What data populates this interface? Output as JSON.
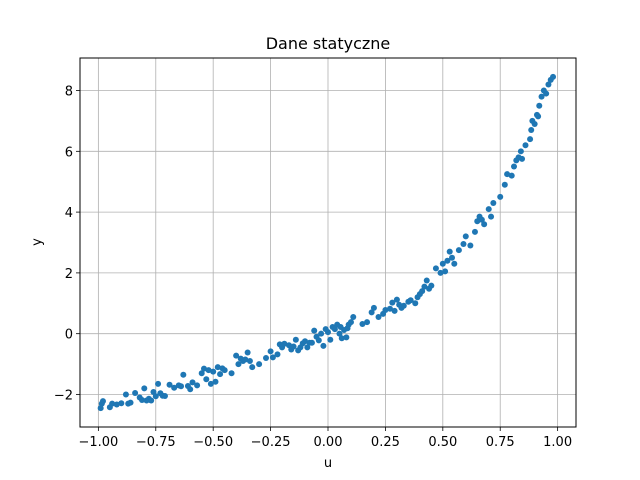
{
  "chart_data": {
    "type": "scatter",
    "title": "Dane statyczne",
    "xlabel": "u",
    "ylabel": "y",
    "xlim": [
      -1.08,
      1.08
    ],
    "ylim": [
      -3.07,
      9.07
    ],
    "xticks": [
      -1.0,
      -0.75,
      -0.5,
      -0.25,
      0.0,
      0.25,
      0.5,
      0.75,
      1.0
    ],
    "xtick_labels": [
      "−1.00",
      "−0.75",
      "−0.50",
      "−0.25",
      "0.00",
      "0.25",
      "0.50",
      "0.75",
      "1.00"
    ],
    "yticks": [
      -2,
      0,
      2,
      4,
      6,
      8
    ],
    "ytick_labels": [
      "−2",
      "0",
      "2",
      "4",
      "6",
      "8"
    ],
    "grid": true,
    "marker_color": "#1f77b4",
    "points": [
      [
        -0.99,
        -2.45
      ],
      [
        -0.985,
        -2.3
      ],
      [
        -0.98,
        -2.22
      ],
      [
        -0.95,
        -2.42
      ],
      [
        -0.94,
        -2.3
      ],
      [
        -0.92,
        -2.33
      ],
      [
        -0.9,
        -2.29
      ],
      [
        -0.88,
        -2.0
      ],
      [
        -0.87,
        -2.3
      ],
      [
        -0.86,
        -2.27
      ],
      [
        -0.84,
        -1.95
      ],
      [
        -0.82,
        -2.1
      ],
      [
        -0.81,
        -2.18
      ],
      [
        -0.8,
        -1.8
      ],
      [
        -0.79,
        -2.2
      ],
      [
        -0.78,
        -2.14
      ],
      [
        -0.77,
        -2.2
      ],
      [
        -0.76,
        -1.92
      ],
      [
        -0.75,
        -2.06
      ],
      [
        -0.74,
        -1.65
      ],
      [
        -0.73,
        -1.96
      ],
      [
        -0.72,
        -2.04
      ],
      [
        -0.71,
        -2.05
      ],
      [
        -0.69,
        -1.68
      ],
      [
        -0.67,
        -1.78
      ],
      [
        -0.65,
        -1.7
      ],
      [
        -0.64,
        -1.73
      ],
      [
        -0.63,
        -1.35
      ],
      [
        -0.61,
        -1.72
      ],
      [
        -0.6,
        -1.83
      ],
      [
        -0.59,
        -1.6
      ],
      [
        -0.57,
        -1.7
      ],
      [
        -0.55,
        -1.3
      ],
      [
        -0.54,
        -1.15
      ],
      [
        -0.53,
        -1.5
      ],
      [
        -0.52,
        -1.2
      ],
      [
        -0.51,
        -1.65
      ],
      [
        -0.5,
        -1.25
      ],
      [
        -0.49,
        -1.58
      ],
      [
        -0.48,
        -1.1
      ],
      [
        -0.47,
        -1.33
      ],
      [
        -0.46,
        -1.14
      ],
      [
        -0.45,
        -1.2
      ],
      [
        -0.42,
        -1.3
      ],
      [
        -0.4,
        -0.72
      ],
      [
        -0.39,
        -1.0
      ],
      [
        -0.38,
        -0.82
      ],
      [
        -0.37,
        -0.9
      ],
      [
        -0.36,
        -0.85
      ],
      [
        -0.35,
        -0.62
      ],
      [
        -0.34,
        -0.9
      ],
      [
        -0.33,
        -1.1
      ],
      [
        -0.3,
        -1.0
      ],
      [
        -0.27,
        -0.8
      ],
      [
        -0.25,
        -0.58
      ],
      [
        -0.24,
        -0.78
      ],
      [
        -0.22,
        -0.68
      ],
      [
        -0.21,
        -0.35
      ],
      [
        -0.2,
        -0.45
      ],
      [
        -0.19,
        -0.33
      ],
      [
        -0.17,
        -0.38
      ],
      [
        -0.16,
        -0.52
      ],
      [
        -0.15,
        -0.42
      ],
      [
        -0.14,
        -0.2
      ],
      [
        -0.13,
        -0.55
      ],
      [
        -0.12,
        -0.45
      ],
      [
        -0.11,
        -0.32
      ],
      [
        -0.1,
        -0.25
      ],
      [
        -0.09,
        -0.45
      ],
      [
        -0.08,
        -0.3
      ],
      [
        -0.07,
        -0.3
      ],
      [
        -0.06,
        0.1
      ],
      [
        -0.05,
        -0.1
      ],
      [
        -0.04,
        -0.22
      ],
      [
        -0.03,
        0.0
      ],
      [
        -0.02,
        -0.4
      ],
      [
        -0.01,
        0.15
      ],
      [
        0.0,
        0.05
      ],
      [
        0.01,
        -0.2
      ],
      [
        0.02,
        0.22
      ],
      [
        0.03,
        0.15
      ],
      [
        0.04,
        0.3
      ],
      [
        0.05,
        0.0
      ],
      [
        0.055,
        0.22
      ],
      [
        0.06,
        -0.15
      ],
      [
        0.07,
        0.12
      ],
      [
        0.08,
        -0.12
      ],
      [
        0.085,
        0.18
      ],
      [
        0.09,
        0.3
      ],
      [
        0.1,
        0.38
      ],
      [
        0.11,
        0.55
      ],
      [
        0.15,
        0.32
      ],
      [
        0.17,
        0.38
      ],
      [
        0.19,
        0.7
      ],
      [
        0.2,
        0.85
      ],
      [
        0.22,
        0.55
      ],
      [
        0.24,
        0.65
      ],
      [
        0.25,
        0.78
      ],
      [
        0.27,
        0.82
      ],
      [
        0.28,
        1.02
      ],
      [
        0.29,
        0.75
      ],
      [
        0.3,
        1.12
      ],
      [
        0.31,
        0.95
      ],
      [
        0.32,
        0.85
      ],
      [
        0.33,
        0.92
      ],
      [
        0.35,
        1.05
      ],
      [
        0.36,
        1.1
      ],
      [
        0.38,
        1.0
      ],
      [
        0.39,
        1.2
      ],
      [
        0.4,
        1.3
      ],
      [
        0.41,
        1.4
      ],
      [
        0.42,
        1.55
      ],
      [
        0.43,
        1.75
      ],
      [
        0.44,
        1.48
      ],
      [
        0.45,
        1.58
      ],
      [
        0.47,
        2.15
      ],
      [
        0.49,
        2.0
      ],
      [
        0.5,
        2.3
      ],
      [
        0.51,
        2.05
      ],
      [
        0.52,
        2.4
      ],
      [
        0.53,
        2.7
      ],
      [
        0.54,
        2.5
      ],
      [
        0.55,
        2.3
      ],
      [
        0.57,
        2.75
      ],
      [
        0.59,
        2.95
      ],
      [
        0.6,
        3.2
      ],
      [
        0.62,
        2.9
      ],
      [
        0.64,
        3.35
      ],
      [
        0.65,
        3.7
      ],
      [
        0.66,
        3.85
      ],
      [
        0.67,
        3.75
      ],
      [
        0.68,
        3.6
      ],
      [
        0.7,
        4.1
      ],
      [
        0.71,
        3.85
      ],
      [
        0.72,
        4.3
      ],
      [
        0.75,
        4.5
      ],
      [
        0.77,
        4.9
      ],
      [
        0.78,
        5.25
      ],
      [
        0.8,
        5.2
      ],
      [
        0.81,
        5.5
      ],
      [
        0.82,
        5.7
      ],
      [
        0.83,
        5.8
      ],
      [
        0.84,
        6.0
      ],
      [
        0.845,
        5.75
      ],
      [
        0.86,
        6.2
      ],
      [
        0.88,
        6.4
      ],
      [
        0.885,
        6.7
      ],
      [
        0.89,
        7.0
      ],
      [
        0.9,
        6.9
      ],
      [
        0.91,
        7.2
      ],
      [
        0.915,
        7.15
      ],
      [
        0.92,
        7.5
      ],
      [
        0.93,
        7.8
      ],
      [
        0.94,
        8.0
      ],
      [
        0.95,
        7.9
      ],
      [
        0.96,
        8.2
      ],
      [
        0.97,
        8.35
      ],
      [
        0.98,
        8.45
      ]
    ]
  }
}
